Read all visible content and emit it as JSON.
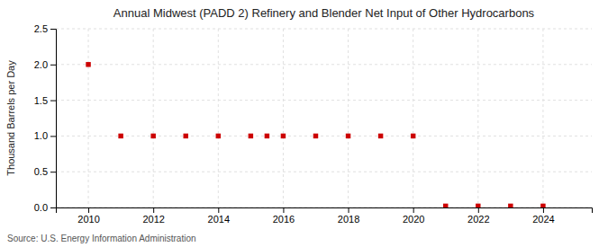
{
  "chart_data": {
    "type": "scatter",
    "title": "Annual Midwest (PADD 2) Refinery and Blender Net Input of Other Hydrocarbons",
    "y_label": "Thousand Barrels per Day",
    "annotations": [
      "Source: U.S. Energy Information Administration"
    ],
    "x": [
      2010,
      2011,
      2012,
      2013,
      2014,
      2015,
      2015.5,
      2016,
      2017,
      2018,
      2019,
      2020,
      2021,
      2022,
      2023,
      2024
    ],
    "values": [
      2.0,
      1.0,
      1.0,
      1.0,
      1.0,
      1.0,
      1.0,
      1.0,
      1.0,
      1.0,
      1.0,
      1.0,
      0.02,
      0.02,
      0.02,
      0.02
    ],
    "color": "#cc0000",
    "marker": "square",
    "xlim": [
      2009.0,
      2025.5
    ],
    "xticks": [
      2010,
      2012,
      2014,
      2016,
      2018,
      2020,
      2022,
      2024
    ],
    "ylim": [
      0,
      2.5
    ],
    "yticks": [
      {
        "value": 0.0,
        "label": "0.0"
      },
      0.5,
      {
        "value": 1.0,
        "label": "1.0"
      },
      1.5,
      {
        "value": 2.0,
        "label": "2.0"
      },
      2.5
    ],
    "grid": true
  }
}
